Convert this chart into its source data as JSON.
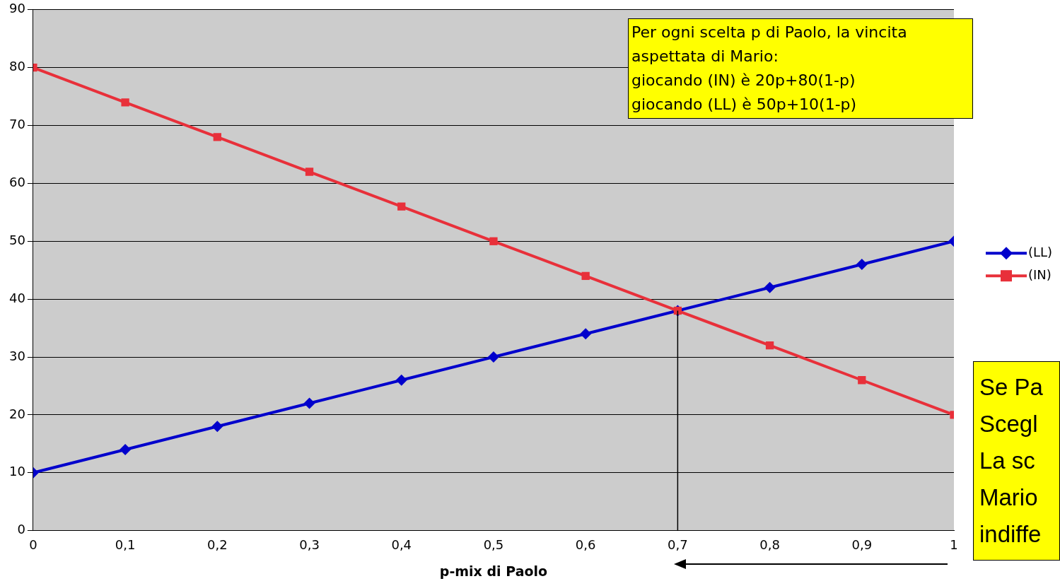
{
  "chart_data": {
    "type": "line",
    "xlabel": "p-mix di Paolo",
    "x": [
      0,
      0.1,
      0.2,
      0.3,
      0.4,
      0.5,
      0.6,
      0.7,
      0.8,
      0.9,
      1
    ],
    "series": [
      {
        "name": "(LL)",
        "color": "#0000cc",
        "marker": "diamond",
        "values": [
          10,
          14,
          18,
          22,
          26,
          30,
          34,
          38,
          42,
          46,
          50
        ]
      },
      {
        "name": "(IN)",
        "color": "#e8303a",
        "marker": "square",
        "values": [
          80,
          74,
          68,
          62,
          56,
          50,
          44,
          38,
          32,
          26,
          20
        ]
      }
    ],
    "xlim": [
      0,
      1
    ],
    "xticks": [
      0,
      {
        "value": 0.1,
        "label": "0,1"
      },
      {
        "value": 0.2,
        "label": "0,2"
      },
      {
        "value": 0.3,
        "label": "0,3"
      },
      {
        "value": 0.4,
        "label": "0,4"
      },
      {
        "value": 0.5,
        "label": "0,5"
      },
      {
        "value": 0.6,
        "label": "0,6"
      },
      {
        "value": 0.7,
        "label": "0,7"
      },
      {
        "value": 0.8,
        "label": "0,8"
      },
      {
        "value": 0.9,
        "label": "0,9"
      },
      1
    ],
    "ylim": [
      0,
      90
    ],
    "yticks": [
      0,
      10,
      20,
      30,
      40,
      50,
      60,
      70,
      80,
      90
    ],
    "grid": "y",
    "legend": "right",
    "line_style": "solid",
    "ref_lines": [
      {
        "axis": "x",
        "value": 0.7,
        "color": "#000000"
      }
    ],
    "annotations": [
      "Per ogni scelta p di Paolo, la vincita\naspettata di Mario:\ngiocando (IN) è 20p+80(1-p)\ngiocando (LL) è 50p+10(1-p)",
      "Se Pa\nScegl\nLa sc\nMario\nindiffe"
    ]
  }
}
